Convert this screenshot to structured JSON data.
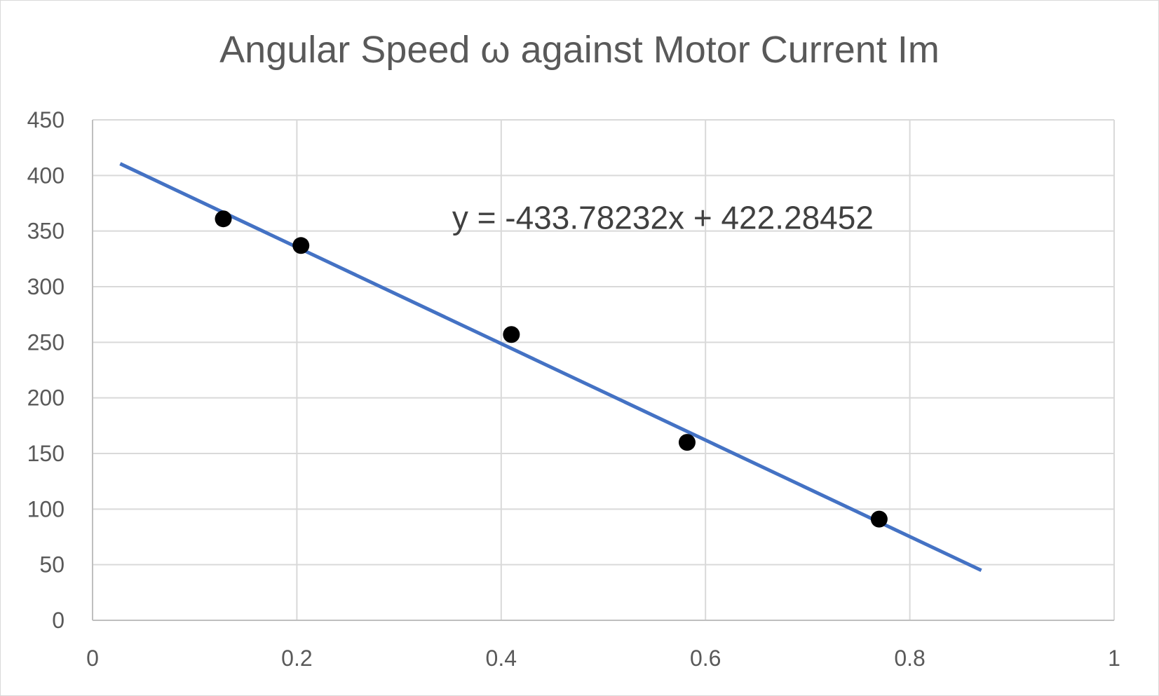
{
  "chart_data": {
    "type": "scatter",
    "title": "Angular Speed ω against Motor Current Im",
    "xlabel": "",
    "ylabel": "",
    "xlim": [
      0,
      1
    ],
    "ylim": [
      0,
      450
    ],
    "x_ticks": [
      0,
      0.2,
      0.4,
      0.6,
      0.8,
      1
    ],
    "x_tick_labels": [
      "0",
      "0.2",
      "0.4",
      "0.6",
      "0.8",
      "1"
    ],
    "y_ticks": [
      0,
      50,
      100,
      150,
      200,
      250,
      300,
      350,
      400,
      450
    ],
    "y_tick_labels": [
      "0",
      "50",
      "100",
      "150",
      "200",
      "250",
      "300",
      "350",
      "400",
      "450"
    ],
    "grid": true,
    "series": [
      {
        "type": "scatter",
        "color": "#000000",
        "points": [
          {
            "x": 0.128,
            "y": 361
          },
          {
            "x": 0.204,
            "y": 337
          },
          {
            "x": 0.41,
            "y": 257
          },
          {
            "x": 0.582,
            "y": 160
          },
          {
            "x": 0.77,
            "y": 91
          }
        ]
      },
      {
        "type": "trendline",
        "color": "#4472c4",
        "slope": -433.78232,
        "intercept": 422.28452,
        "x_range": [
          0.027,
          0.87
        ]
      }
    ],
    "annotations": [
      {
        "text": "y = -433.78232x + 422.28452",
        "x": 0.352,
        "y": 352
      }
    ]
  }
}
